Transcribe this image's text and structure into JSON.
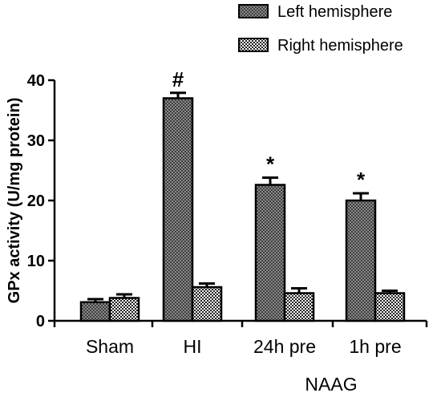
{
  "chart_data": {
    "type": "bar",
    "ylabel": "GPx activity (U/mg protein)",
    "xlabel": "",
    "ylim": [
      0,
      40
    ],
    "yticks": [
      0,
      10,
      20,
      30,
      40
    ],
    "grid": false,
    "legend_position": "top-right",
    "categories": [
      "Sham",
      "HI",
      "24h pre",
      "1h pre"
    ],
    "group_label": {
      "text": "NAAG",
      "applies_to": [
        "24h pre",
        "1h pre"
      ]
    },
    "series": [
      {
        "name": "Left hemisphere",
        "pattern": "dark-checkered",
        "values": [
          3.1,
          37.0,
          22.6,
          20.0
        ],
        "errors": [
          0.5,
          0.9,
          1.2,
          1.2
        ],
        "annotations": [
          "",
          "#",
          "*",
          "*"
        ]
      },
      {
        "name": "Right hemisphere",
        "pattern": "light-checkered",
        "values": [
          3.8,
          5.6,
          4.6,
          4.6
        ],
        "errors": [
          0.6,
          0.6,
          0.8,
          0.4
        ],
        "annotations": [
          "",
          "",
          "",
          ""
        ]
      }
    ],
    "colors": {
      "outline": "#000000",
      "dark_fill": "#5a5a5a",
      "light_fill": "#ffffff"
    }
  }
}
